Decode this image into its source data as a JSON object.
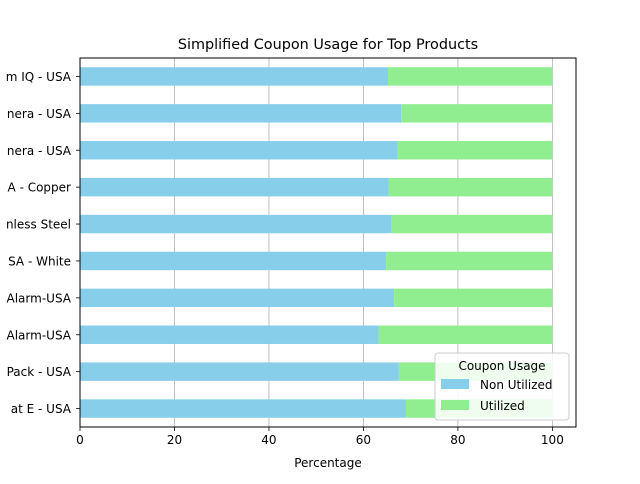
{
  "chart_data": {
    "type": "bar",
    "orientation": "horizontal",
    "stacked": true,
    "title": "Simplified Coupon Usage for Top Products",
    "xlabel": "Percentage",
    "ylabel": "",
    "xlim": [
      0,
      105
    ],
    "xticks": [
      0,
      20,
      40,
      60,
      80,
      100
    ],
    "grid": "x",
    "categories": [
      "m IQ - USA",
      "nera - USA",
      "nera - USA",
      "A - Copper",
      "nless Steel",
      "SA - White",
      "Alarm-USA",
      "Alarm-USA",
      "Pack - USA",
      "at E - USA"
    ],
    "series": [
      {
        "name": "Non Utilized",
        "color": "#87ceeb",
        "values": [
          65.2,
          68.0,
          67.2,
          65.3,
          66.0,
          64.8,
          66.5,
          63.2,
          67.5,
          69.0
        ]
      },
      {
        "name": "Utilized",
        "color": "#90ee90",
        "values": [
          34.8,
          32.0,
          32.8,
          34.7,
          34.0,
          35.2,
          33.5,
          36.8,
          32.5,
          31.0
        ]
      }
    ],
    "legend": {
      "title": "Coupon Usage",
      "placement": "lower-right"
    }
  }
}
